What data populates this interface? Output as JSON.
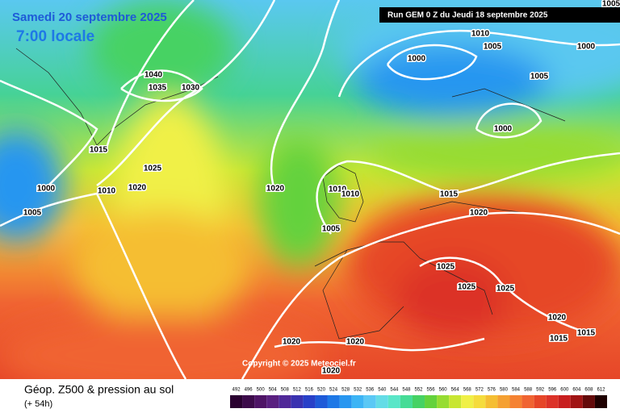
{
  "header": {
    "date": "Samedi 20 septembre 2025",
    "time": "7:00 locale",
    "run": "Run GEM 0 Z du Jeudi 18 septembre 2025"
  },
  "copyright": "Copyright © 2025 Meteociel.fr",
  "footer": {
    "title": "Géop. Z500 & pression au sol",
    "lead": "(+ 54h)"
  },
  "isobar_labels": [
    "1005",
    "1010",
    "1005",
    "1000",
    "1000",
    "1005",
    "1000",
    "1040",
    "1035",
    "1030",
    "1015",
    "1025",
    "1000",
    "1010",
    "1020",
    "1005",
    "1020",
    "1010",
    "1010",
    "1015",
    "1020",
    "1005",
    "1025",
    "1025",
    "1025",
    "1020",
    "1015",
    "1015",
    "1020",
    "1020",
    "1020"
  ],
  "legend": {
    "levels": [
      492,
      496,
      500,
      504,
      508,
      512,
      516,
      520,
      524,
      528,
      532,
      536,
      540,
      544,
      548,
      552,
      556,
      560,
      564,
      568,
      572,
      576,
      580,
      584,
      588,
      592,
      596,
      600,
      604,
      608,
      612
    ],
    "colors": [
      "#2a0030",
      "#3c0a4a",
      "#4e1466",
      "#5a2080",
      "#502898",
      "#3a32b0",
      "#2840c8",
      "#1e5ad8",
      "#1e78e6",
      "#2896f0",
      "#3cb4f5",
      "#5ac8f5",
      "#64dce6",
      "#5ae6c8",
      "#46dc96",
      "#46d264",
      "#64d23c",
      "#96dc32",
      "#c8e632",
      "#f0f046",
      "#f5dc3c",
      "#f5be32",
      "#f5a032",
      "#f58232",
      "#f06432",
      "#e64628",
      "#dc3228",
      "#c81e1e",
      "#a01414",
      "#640a0a",
      "#1e0000"
    ]
  }
}
